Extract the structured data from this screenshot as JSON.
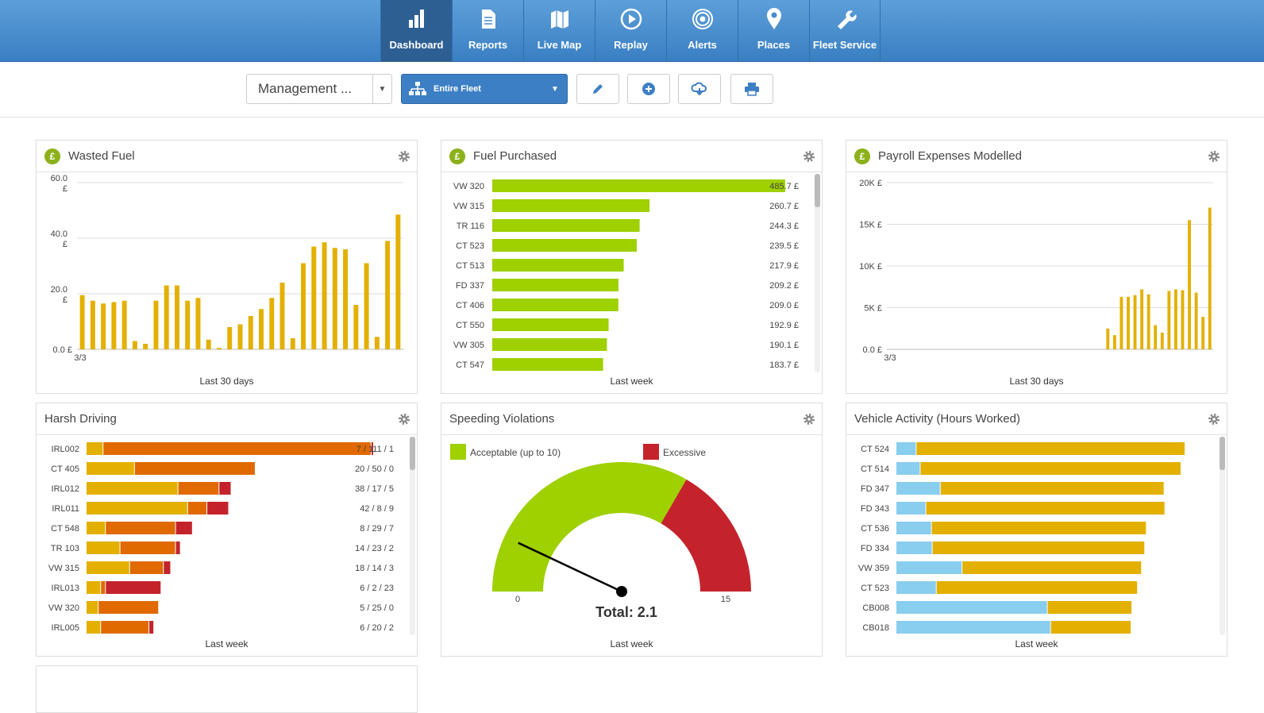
{
  "nav": {
    "items": [
      {
        "label": "Dashboard",
        "icon": "bar-chart-icon",
        "active": true
      },
      {
        "label": "Reports",
        "icon": "document-icon"
      },
      {
        "label": "Live Map",
        "icon": "map-icon"
      },
      {
        "label": "Replay",
        "icon": "play-icon"
      },
      {
        "label": "Alerts",
        "icon": "alert-icon"
      },
      {
        "label": "Places",
        "icon": "pin-icon"
      },
      {
        "label": "Fleet Service",
        "icon": "wrench-icon"
      }
    ]
  },
  "toolbar": {
    "dashboard_select": "Management ...",
    "fleet_select": "Entire Fleet",
    "buttons": [
      "pencil-icon",
      "plus-icon",
      "cloud-icon",
      "print-icon"
    ]
  },
  "colors": {
    "nav_blue": "#3a7fc3",
    "green": "#9fd000",
    "yellow": "#e3b000",
    "orange": "#e06a00",
    "red": "#c4232b",
    "light_blue": "#89cdef",
    "pound_green": "#8cb11b"
  },
  "panels": {
    "wasted_fuel": {
      "title": "Wasted Fuel",
      "footer": "Last 30 days"
    },
    "fuel_purchased": {
      "title": "Fuel Purchased",
      "footer": "Last week"
    },
    "payroll": {
      "title": "Payroll Expenses Modelled",
      "footer": "Last 30 days"
    },
    "harsh": {
      "title": "Harsh Driving",
      "footer": "Last week"
    },
    "speeding": {
      "title": "Speeding Violations",
      "footer": "Last week"
    },
    "activity": {
      "title": "Vehicle Activity (Hours Worked)",
      "footer": "Last week"
    }
  },
  "chart_data": [
    {
      "id": "wasted_fuel",
      "type": "bar",
      "yticks": [
        "0.0 £",
        "20.0 £",
        "40.0 £",
        "60.0 £"
      ],
      "ylim": [
        0,
        60
      ],
      "x_first_label": "3/3",
      "values": [
        19.5,
        17.5,
        16.5,
        17,
        17.5,
        3,
        2,
        17.5,
        23,
        23,
        17.5,
        18.5,
        3.5,
        0.5,
        8,
        9,
        12,
        14.5,
        18.5,
        24,
        4,
        31,
        37,
        38.5,
        36.5,
        36,
        16,
        31,
        4.5,
        39,
        48.5
      ],
      "color": "#e3b000"
    },
    {
      "id": "fuel_purchased",
      "type": "bar",
      "orientation": "horizontal",
      "categories": [
        "VW 320",
        "VW 315",
        "TR 116",
        "CT 523",
        "CT 513",
        "FD 337",
        "CT 406",
        "CT 550",
        "VW 305",
        "CT 547"
      ],
      "values": [
        485.7,
        260.7,
        244.3,
        239.5,
        217.9,
        209.2,
        209.0,
        192.9,
        190.1,
        183.7
      ],
      "value_labels": [
        "485.7 £",
        "260.7 £",
        "244.3 £",
        "239.5 £",
        "217.9 £",
        "209.2 £",
        "209.0 £",
        "192.9 £",
        "190.1 £",
        "183.7 £"
      ],
      "color": "#9fd000"
    },
    {
      "id": "payroll",
      "type": "bar",
      "yticks": [
        "0.0 £",
        "5K £",
        "10K £",
        "15K £",
        "20K £"
      ],
      "ylim": [
        0,
        20000
      ],
      "x_first_label": "3/3",
      "values": [
        0,
        0,
        0,
        0,
        0,
        0,
        0,
        0,
        0,
        0,
        0,
        0,
        0,
        0,
        0,
        0,
        0,
        0,
        0,
        0,
        0,
        0,
        0,
        0,
        0,
        0,
        0,
        0,
        0,
        0,
        0,
        0,
        2500,
        1700,
        6300,
        6300,
        6500,
        7200,
        6600,
        2900,
        2000,
        7000,
        7200,
        7100,
        15500,
        6800,
        3900,
        17000
      ],
      "color": "#e3b000"
    },
    {
      "id": "harsh",
      "type": "bar",
      "orientation": "horizontal-stacked",
      "categories": [
        "IRL002",
        "CT 405",
        "IRL012",
        "IRL011",
        "CT 548",
        "TR 103",
        "VW 315",
        "IRL013",
        "VW 320",
        "IRL005"
      ],
      "value_labels": [
        "7 / 111 / 1",
        "20 / 50 / 0",
        "38 / 17 / 5",
        "42 / 8 / 9",
        "8 / 29 / 7",
        "14 / 23 / 2",
        "18 / 14 / 3",
        "6 / 2 / 23",
        "5 / 25 / 0",
        "6 / 20 / 2"
      ],
      "series": [
        {
          "values": [
            7,
            20,
            38,
            42,
            8,
            14,
            18,
            6,
            5,
            6
          ],
          "color": "#e3b000"
        },
        {
          "values": [
            111,
            50,
            17,
            8,
            29,
            23,
            14,
            2,
            25,
            20
          ],
          "color": "#e06a00"
        },
        {
          "values": [
            1,
            0,
            5,
            9,
            7,
            2,
            3,
            23,
            0,
            2
          ],
          "color": "#c4232b"
        }
      ]
    },
    {
      "id": "speeding",
      "type": "gauge",
      "min": 0,
      "max": 15,
      "threshold": 10,
      "value": 2.1,
      "min_label": "0",
      "max_label": "15",
      "total_label": "Total: 2.1",
      "legend": [
        "Acceptable (up to 10)",
        "Excessive"
      ],
      "colors": [
        "#9fd000",
        "#c4232b"
      ]
    },
    {
      "id": "activity",
      "type": "bar",
      "orientation": "horizontal-stacked",
      "categories": [
        "CT 524",
        "CT 514",
        "FD 347",
        "FD 343",
        "CT 536",
        "FD 334",
        "VW 359",
        "CT 523",
        "CB008",
        "CB018"
      ],
      "series": [
        {
          "values": [
            2.5,
            3,
            5.5,
            3.7,
            4.4,
            4.5,
            8.2,
            5,
            18.8,
            19.2
          ],
          "color": "#89cdef"
        },
        {
          "values": [
            33.4,
            32.4,
            27.8,
            29.7,
            26.7,
            26.4,
            22.3,
            25,
            10.5,
            10
          ],
          "color": "#e3b000"
        }
      ]
    }
  ]
}
